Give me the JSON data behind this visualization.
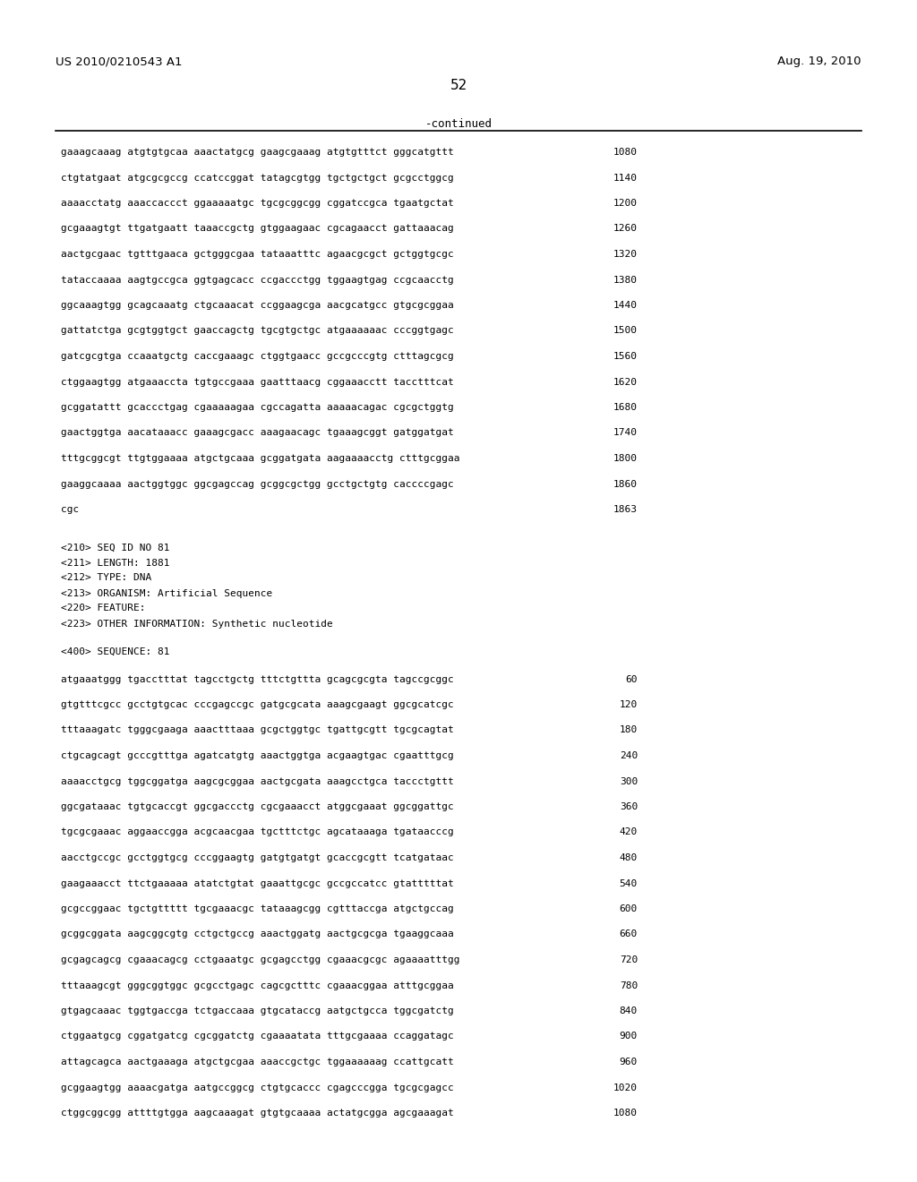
{
  "background_color": "#ffffff",
  "header_left": "US 2010/0210543 A1",
  "header_right": "Aug. 19, 2010",
  "page_number": "52",
  "continued_label": "-continued",
  "content": [
    {
      "type": "seq",
      "text": "gaaagcaaag atgtgtgcaa aaactatgcg gaagcgaaag atgtgtttct gggcatgttt",
      "num": "1080"
    },
    {
      "type": "seq",
      "text": "ctgtatgaat atgcgcgccg ccatccggat tatagcgtgg tgctgctgct gcgcctggcg",
      "num": "1140"
    },
    {
      "type": "seq",
      "text": "aaaacctatg aaaccaccct ggaaaaatgc tgcgcggcgg cggatccgca tgaatgctat",
      "num": "1200"
    },
    {
      "type": "seq",
      "text": "gcgaaagtgt ttgatgaatt taaaccgctg gtggaagaac cgcagaacct gattaaacag",
      "num": "1260"
    },
    {
      "type": "seq",
      "text": "aactgcgaac tgtttgaaca gctgggcgaa tataaatttc agaacgcgct gctggtgcgc",
      "num": "1320"
    },
    {
      "type": "seq",
      "text": "tataccaaaa aagtgccgca ggtgagcacc ccgaccctgg tggaagtgag ccgcaacctg",
      "num": "1380"
    },
    {
      "type": "seq",
      "text": "ggcaaagtgg gcagcaaatg ctgcaaacat ccggaagcga aacgcatgcc gtgcgcggaa",
      "num": "1440"
    },
    {
      "type": "seq",
      "text": "gattatctga gcgtggtgct gaaccagctg tgcgtgctgc atgaaaaaac cccggtgagc",
      "num": "1500"
    },
    {
      "type": "seq",
      "text": "gatcgcgtga ccaaatgctg caccgaaagc ctggtgaacc gccgcccgtg ctttagcgcg",
      "num": "1560"
    },
    {
      "type": "seq",
      "text": "ctggaagtgg atgaaaccta tgtgccgaaa gaatttaacg cggaaacctt tacctttcat",
      "num": "1620"
    },
    {
      "type": "seq",
      "text": "gcggatattt gcaccctgag cgaaaaagaa cgccagatta aaaaacagac cgcgctggtg",
      "num": "1680"
    },
    {
      "type": "seq",
      "text": "gaactggtga aacataaacc gaaagcgacc aaagaacagc tgaaagcggt gatggatgat",
      "num": "1740"
    },
    {
      "type": "seq",
      "text": "tttgcggcgt ttgtggaaaa atgctgcaaa gcggatgata aagaaaacctg ctttgcggaa",
      "num": "1800"
    },
    {
      "type": "seq",
      "text": "gaaggcaaaa aactggtggc ggcgagccag gcggcgctgg gcctgctgtg caccccgagc",
      "num": "1860"
    },
    {
      "type": "seq",
      "text": "cgc",
      "num": "1863"
    },
    {
      "type": "blank"
    },
    {
      "type": "meta",
      "text": "<210> SEQ ID NO 81"
    },
    {
      "type": "meta",
      "text": "<211> LENGTH: 1881"
    },
    {
      "type": "meta",
      "text": "<212> TYPE: DNA"
    },
    {
      "type": "meta",
      "text": "<213> ORGANISM: Artificial Sequence"
    },
    {
      "type": "meta",
      "text": "<220> FEATURE:"
    },
    {
      "type": "meta",
      "text": "<223> OTHER INFORMATION: Synthetic nucleotide"
    },
    {
      "type": "blank"
    },
    {
      "type": "meta",
      "text": "<400> SEQUENCE: 81"
    },
    {
      "type": "blank"
    },
    {
      "type": "seq",
      "text": "atgaaatggg tgacctttat tagcctgctg tttctgttta gcagcgcgta tagccgcggc",
      "num": "60"
    },
    {
      "type": "seq",
      "text": "gtgtttcgcc gcctgtgcac cccgagccgc gatgcgcata aaagcgaagt ggcgcatcgc",
      "num": "120"
    },
    {
      "type": "seq",
      "text": "tttaaagatc tgggcgaaga aaactttaaa gcgctggtgc tgattgcgtt tgcgcagtat",
      "num": "180"
    },
    {
      "type": "seq",
      "text": "ctgcagcagt gcccgtttga agatcatgtg aaactggtga acgaagtgac cgaatttgcg",
      "num": "240"
    },
    {
      "type": "seq",
      "text": "aaaacctgcg tggcggatga aagcgcggaa aactgcgata aaagcctgca taccctgttt",
      "num": "300"
    },
    {
      "type": "seq",
      "text": "ggcgataaac tgtgcaccgt ggcgaccctg cgcgaaacct atggcgaaat ggcggattgc",
      "num": "360"
    },
    {
      "type": "seq",
      "text": "tgcgcgaaac aggaaccgga acgcaacgaa tgctttctgc agcataaaga tgataacccg",
      "num": "420"
    },
    {
      "type": "seq",
      "text": "aacctgccgc gcctggtgcg cccggaagtg gatgtgatgt gcaccgcgtt tcatgataac",
      "num": "480"
    },
    {
      "type": "seq",
      "text": "gaagaaacct ttctgaaaaa atatctgtat gaaattgcgc gccgccatcc gtatttttat",
      "num": "540"
    },
    {
      "type": "seq",
      "text": "gcgccggaac tgctgttttt tgcgaaacgc tataaagcgg cgtttaccga atgctgccag",
      "num": "600"
    },
    {
      "type": "seq",
      "text": "gcggcggata aagcggcgtg cctgctgccg aaactggatg aactgcgcga tgaaggcaaa",
      "num": "660"
    },
    {
      "type": "seq",
      "text": "gcgagcagcg cgaaacagcg cctgaaatgc gcgagcctgg cgaaacgcgc agaaaatttgg",
      "num": "720"
    },
    {
      "type": "seq",
      "text": "tttaaagcgt gggcggtggc gcgcctgagc cagcgctttc cgaaacggaa atttgcggaa",
      "num": "780"
    },
    {
      "type": "seq",
      "text": "gtgagcaaac tggtgaccga tctgaccaaa gtgcataccg aatgctgcca tggcgatctg",
      "num": "840"
    },
    {
      "type": "seq",
      "text": "ctggaatgcg cggatgatcg cgcggatctg cgaaaatata tttgcgaaaa ccaggatagc",
      "num": "900"
    },
    {
      "type": "seq",
      "text": "attagcagca aactgaaaga atgctgcgaa aaaccgctgc tggaaaaaag ccattgcatt",
      "num": "960"
    },
    {
      "type": "seq",
      "text": "gcggaagtgg aaaacgatga aatgccggcg ctgtgcaccc cgagcccgga tgcgcgagcc",
      "num": "1020"
    },
    {
      "type": "seq",
      "text": "ctggcggcgg attttgtgga aagcaaagat gtgtgcaaaa actatgcgga agcgaaagat",
      "num": "1080"
    }
  ]
}
